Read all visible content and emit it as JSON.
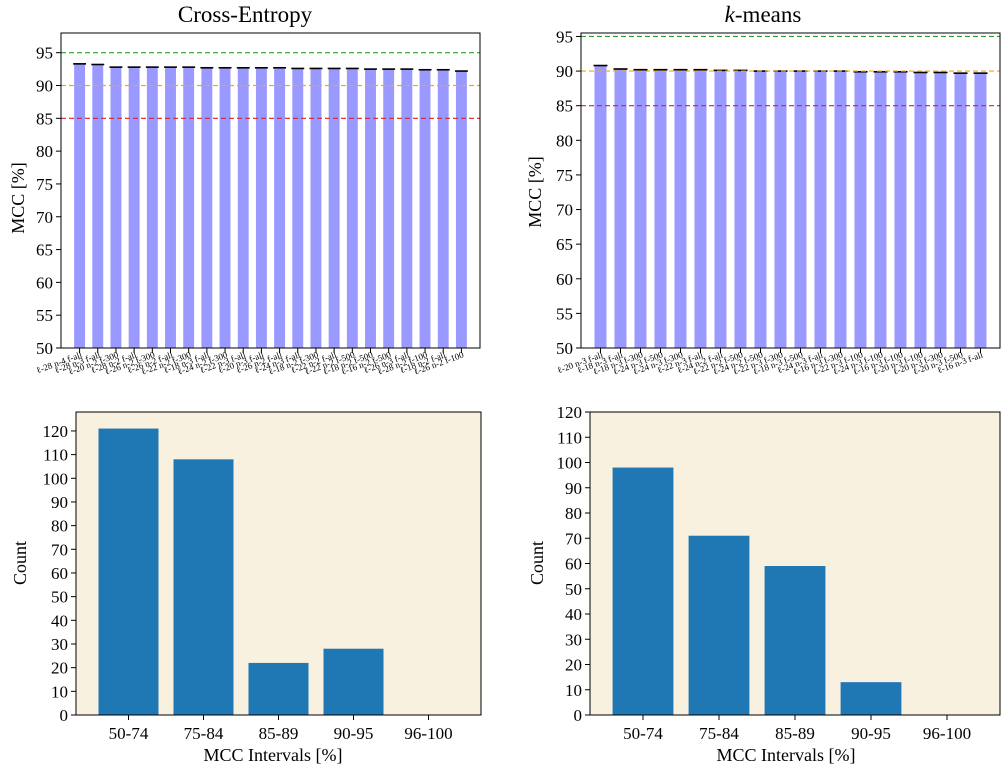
{
  "colors": {
    "top_bar": "#9999ff",
    "bottom_bar": "#1f77b4",
    "bottom_bg": "#f9f1df",
    "line_green": "#2ca02c",
    "line_orange": "#ffa500",
    "line_red": "#d62728",
    "error_bar": "#000000"
  },
  "chart_data": [
    {
      "type": "bar",
      "title": "Cross-Entropy",
      "ylabel": "MCC [%]",
      "xlabel": "",
      "ylim": [
        50,
        98
      ],
      "yticks": [
        50,
        55,
        60,
        65,
        70,
        75,
        80,
        85,
        90,
        95
      ],
      "grid": false,
      "reference_lines": [
        95,
        90,
        85
      ],
      "categories": [
        "ℓ-28 n-4 f-all",
        "ℓ-28 n-3 f-all",
        "ℓ-20 n-2 f-300",
        "ℓ-28 n-2 f-all",
        "ℓ-26 n-2 f-300",
        "ℓ-26 n-2 f-all",
        "ℓ-22 n-2 f-300",
        "ℓ-18 n-3 f-all",
        "ℓ-24 n-2 f-300",
        "ℓ-22 n-3 f-all",
        "ℓ-20 n-3 f-all",
        "ℓ-26 n-2 f-all",
        "ℓ-24 n-3 f-all",
        "ℓ-18 n-2 f-300",
        "ℓ-22 n-2 f-all",
        "ℓ-22 n-2 f-500",
        "ℓ-18 n-2 f-500",
        "ℓ-16 n-2 f-500",
        "ℓ-26 n-3 f-all",
        "ℓ-28 n-2 f-100",
        "ℓ-18 n-2 f-all",
        "ℓ-26 n-2 f-100"
      ],
      "values": [
        93.3,
        93.2,
        92.8,
        92.8,
        92.8,
        92.8,
        92.8,
        92.7,
        92.7,
        92.7,
        92.7,
        92.7,
        92.6,
        92.6,
        92.6,
        92.6,
        92.5,
        92.5,
        92.5,
        92.4,
        92.4,
        92.2
      ]
    },
    {
      "type": "bar",
      "title": "k-means",
      "title_italic_part": "k",
      "title_rest": "-means",
      "ylabel": "MCC [%]",
      "xlabel": "",
      "ylim": [
        50,
        95.5
      ],
      "yticks": [
        50,
        55,
        60,
        65,
        70,
        75,
        80,
        85,
        90,
        95
      ],
      "grid": false,
      "reference_lines": [
        95,
        90,
        85
      ],
      "categories": [
        "ℓ-20 n-3 f-all",
        "ℓ-18 n-3 f-all",
        "ℓ-18 n-3 f-300",
        "ℓ-24 n-3 f-500",
        "ℓ-24 n-3 f-300",
        "ℓ-22 n-3 f-all",
        "ℓ-24 n-2 f-all",
        "ℓ-22 n-2 f-500",
        "ℓ-24 n-2 f-500",
        "ℓ-22 n-3 f-300",
        "ℓ-18 n-3 f-500",
        "ℓ-24 n-3 f-all",
        "ℓ-16 n-3 f-300",
        "ℓ-22 n-3 f-100",
        "ℓ-24 n-3 f-100",
        "ℓ-16 n-3 f-100",
        "ℓ-20 n-3 f-100",
        "ℓ-20 n-3 f-300",
        "ℓ-20 n-3 f-500",
        "ℓ-16 n-3 f-all"
      ],
      "values": [
        90.8,
        90.3,
        90.2,
        90.2,
        90.2,
        90.2,
        90.1,
        90.1,
        90.0,
        90.0,
        90.0,
        90.0,
        90.0,
        89.9,
        89.9,
        89.9,
        89.8,
        89.8,
        89.7,
        89.7
      ]
    },
    {
      "type": "bar",
      "title": "",
      "xlabel": "MCC Intervals [%]",
      "ylabel": "Count",
      "ylim": [
        0,
        128
      ],
      "yticks": [
        0,
        10,
        20,
        30,
        40,
        50,
        60,
        70,
        80,
        90,
        100,
        110,
        120
      ],
      "grid": false,
      "categories": [
        "50-74",
        "75-84",
        "85-89",
        "90-95",
        "96-100"
      ],
      "values": [
        121,
        108,
        22,
        28,
        0
      ]
    },
    {
      "type": "bar",
      "title": "",
      "xlabel": "MCC Intervals [%]",
      "ylabel": "Count",
      "ylim": [
        0,
        120
      ],
      "yticks": [
        0,
        10,
        20,
        30,
        40,
        50,
        60,
        70,
        80,
        90,
        100,
        110,
        120
      ],
      "grid": false,
      "categories": [
        "50-74",
        "75-84",
        "85-89",
        "90-95",
        "96-100"
      ],
      "values": [
        98,
        71,
        59,
        13,
        0
      ]
    }
  ]
}
